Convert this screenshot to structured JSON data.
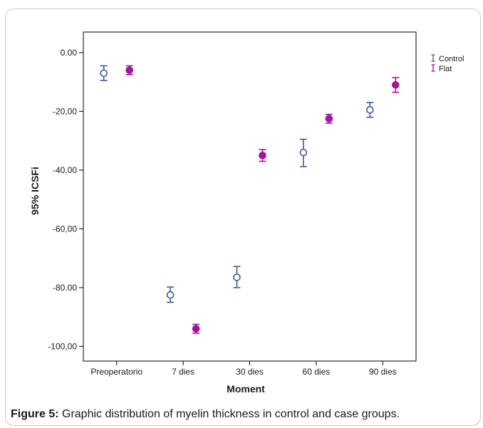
{
  "chart_data": {
    "type": "scatter",
    "subtype": "error-bar",
    "xlabel": "Moment",
    "ylabel": "95% ICSFi",
    "categories": [
      "Preoperatorio",
      "7 dies",
      "30 dies",
      "60 dies",
      "90 dies"
    ],
    "y_ticks": [
      0,
      -20,
      -40,
      -60,
      -80,
      -100
    ],
    "y_tick_labels": [
      "0.00",
      "-20,00",
      "-40,00",
      "-60,00",
      "-80.00",
      "-100,00"
    ],
    "ylim": [
      -105,
      7
    ],
    "grid": false,
    "legend_position": "top-right",
    "series": [
      {
        "name": "Control",
        "color": "#3d5a9e",
        "marker": "open-circle",
        "means": [
          -7.0,
          -82.5,
          -76.5,
          -34.0,
          -19.5
        ],
        "lower": [
          -9.5,
          -85.0,
          -80.0,
          -38.8,
          -22.0
        ],
        "upper": [
          -4.5,
          -79.8,
          -72.8,
          -29.5,
          -17.0
        ]
      },
      {
        "name": "Flat",
        "color": "#a3169b",
        "marker": "filled-circle",
        "means": [
          -6.0,
          -94.0,
          -35.0,
          -22.5,
          -11.0
        ],
        "lower": [
          -7.5,
          -95.5,
          -37.0,
          -24.0,
          -13.5
        ],
        "upper": [
          -4.5,
          -92.5,
          -33.0,
          -21.0,
          -8.5
        ]
      }
    ]
  },
  "caption": {
    "label": "Figure 5:",
    "text": " Graphic distribution of myelin thickness in control and case groups."
  }
}
